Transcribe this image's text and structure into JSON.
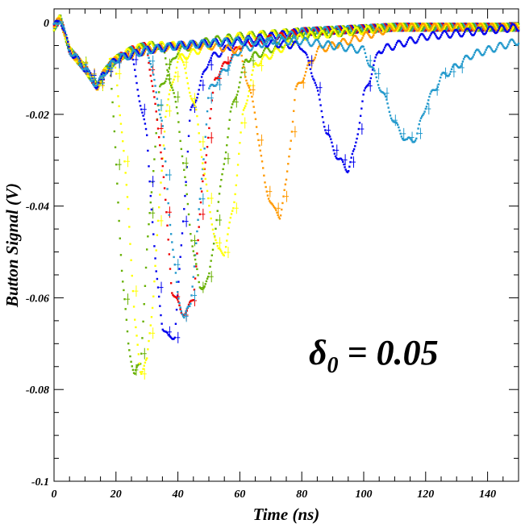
{
  "chart_data": {
    "type": "scatter",
    "xlabel": "Time (ns)",
    "ylabel": "Button Signal (V)",
    "xlim": [
      0,
      150
    ],
    "ylim": [
      -0.1,
      0.003
    ],
    "x_ticks": [
      0,
      20,
      40,
      60,
      80,
      100,
      120,
      140
    ],
    "y_ticks": [
      0,
      -0.02,
      -0.04,
      -0.06,
      -0.08,
      -0.1
    ],
    "x_tick_labels": [
      "0",
      "20",
      "40",
      "60",
      "80",
      "100",
      "120",
      "140"
    ],
    "y_tick_labels": [
      "0",
      "-0.02",
      "-0.04",
      "-0.06",
      "-0.08",
      "-0.1"
    ],
    "annotation": {
      "symbol": "δ",
      "subscript": "0",
      "text": " = 0.05"
    },
    "grid": false,
    "series": [
      {
        "color": "#66b000",
        "x": [
          0,
          2,
          5,
          10,
          14,
          16,
          18,
          20,
          22,
          24,
          26,
          28,
          30,
          34,
          40,
          50,
          60,
          80,
          110,
          150
        ],
        "y": [
          -0.001,
          0.001,
          -0.006,
          -0.01,
          -0.014,
          -0.011,
          -0.008,
          -0.03,
          -0.055,
          -0.07,
          -0.077,
          -0.074,
          -0.05,
          -0.015,
          -0.006,
          -0.004,
          -0.003,
          -0.002,
          -0.001,
          -0.001
        ]
      },
      {
        "color": "#ffff00",
        "x": [
          0,
          2,
          5,
          10,
          14,
          16,
          18,
          20,
          24,
          26,
          28,
          30,
          32,
          36,
          40,
          50,
          60,
          80,
          110,
          150
        ],
        "y": [
          -0.001,
          0.001,
          -0.006,
          -0.01,
          -0.014,
          -0.011,
          -0.008,
          -0.01,
          -0.04,
          -0.065,
          -0.076,
          -0.074,
          -0.06,
          -0.02,
          -0.008,
          -0.005,
          -0.003,
          -0.002,
          -0.001,
          -0.001
        ]
      },
      {
        "color": "#0000ee",
        "x": [
          0,
          2,
          5,
          10,
          14,
          16,
          20,
          25,
          30,
          33,
          35,
          37,
          39,
          41,
          44,
          50,
          60,
          80,
          110,
          150
        ],
        "y": [
          -0.001,
          0.001,
          -0.006,
          -0.01,
          -0.014,
          -0.011,
          -0.008,
          -0.007,
          -0.025,
          -0.055,
          -0.066,
          -0.069,
          -0.068,
          -0.05,
          -0.02,
          -0.008,
          -0.004,
          -0.002,
          -0.001,
          -0.001
        ]
      },
      {
        "color": "#ee0000",
        "x": [
          0,
          2,
          5,
          10,
          14,
          16,
          20,
          25,
          30,
          35,
          38,
          41,
          43,
          45,
          48,
          52,
          60,
          80,
          110,
          150
        ],
        "y": [
          -0.001,
          0.001,
          -0.006,
          -0.01,
          -0.014,
          -0.011,
          -0.008,
          -0.006,
          -0.005,
          -0.03,
          -0.058,
          -0.063,
          -0.063,
          -0.06,
          -0.035,
          -0.012,
          -0.005,
          -0.002,
          -0.001,
          -0.001
        ]
      },
      {
        "color": "#2299cc",
        "x": [
          0,
          2,
          5,
          10,
          14,
          16,
          20,
          25,
          30,
          35,
          37,
          40,
          42,
          44,
          47,
          50,
          60,
          80,
          110,
          150
        ],
        "y": [
          -0.001,
          0.001,
          -0.006,
          -0.01,
          -0.014,
          -0.011,
          -0.008,
          -0.006,
          -0.005,
          -0.022,
          -0.04,
          -0.06,
          -0.064,
          -0.062,
          -0.04,
          -0.015,
          -0.006,
          -0.002,
          -0.001,
          -0.001
        ]
      },
      {
        "color": "#66b000",
        "x": [
          0,
          2,
          5,
          10,
          14,
          16,
          20,
          25,
          30,
          35,
          40,
          44,
          47,
          50,
          53,
          57,
          62,
          80,
          110,
          150
        ],
        "y": [
          -0.001,
          0.001,
          -0.006,
          -0.01,
          -0.014,
          -0.011,
          -0.008,
          -0.006,
          -0.005,
          -0.005,
          -0.02,
          -0.045,
          -0.058,
          -0.056,
          -0.04,
          -0.02,
          -0.008,
          -0.003,
          -0.001,
          -0.001
        ]
      },
      {
        "color": "#ffff00",
        "x": [
          0,
          2,
          5,
          10,
          14,
          16,
          20,
          25,
          30,
          40,
          46,
          50,
          53,
          55,
          58,
          61,
          65,
          80,
          110,
          150
        ],
        "y": [
          -0.001,
          0.001,
          -0.006,
          -0.01,
          -0.014,
          -0.011,
          -0.008,
          -0.006,
          -0.005,
          -0.005,
          -0.02,
          -0.04,
          -0.05,
          -0.05,
          -0.04,
          -0.02,
          -0.009,
          -0.003,
          -0.001,
          -0.001
        ]
      },
      {
        "color": "#ff9900",
        "x": [
          0,
          2,
          5,
          10,
          14,
          16,
          20,
          30,
          40,
          50,
          60,
          65,
          68,
          71,
          73,
          75,
          78,
          85,
          110,
          150
        ],
        "y": [
          -0.001,
          0.001,
          -0.006,
          -0.01,
          -0.014,
          -0.011,
          -0.008,
          -0.006,
          -0.005,
          -0.005,
          -0.006,
          -0.02,
          -0.035,
          -0.041,
          -0.042,
          -0.035,
          -0.015,
          -0.006,
          -0.001,
          -0.001
        ]
      },
      {
        "color": "#0000ee",
        "x": [
          0,
          2,
          5,
          10,
          14,
          16,
          20,
          30,
          40,
          60,
          80,
          84,
          88,
          92,
          95,
          97,
          100,
          105,
          120,
          150
        ],
        "y": [
          -0.001,
          0.001,
          -0.006,
          -0.01,
          -0.014,
          -0.011,
          -0.008,
          -0.006,
          -0.005,
          -0.004,
          -0.005,
          -0.012,
          -0.024,
          -0.03,
          -0.032,
          -0.028,
          -0.016,
          -0.006,
          -0.003,
          -0.001
        ]
      },
      {
        "color": "#2299cc",
        "x": [
          0,
          2,
          5,
          10,
          14,
          16,
          20,
          30,
          40,
          60,
          80,
          100,
          106,
          110,
          114,
          117,
          120,
          125,
          135,
          150
        ],
        "y": [
          -0.001,
          0.001,
          -0.006,
          -0.01,
          -0.014,
          -0.011,
          -0.008,
          -0.006,
          -0.005,
          -0.004,
          -0.004,
          -0.006,
          -0.015,
          -0.022,
          -0.026,
          -0.025,
          -0.018,
          -0.012,
          -0.007,
          -0.004
        ]
      }
    ]
  }
}
